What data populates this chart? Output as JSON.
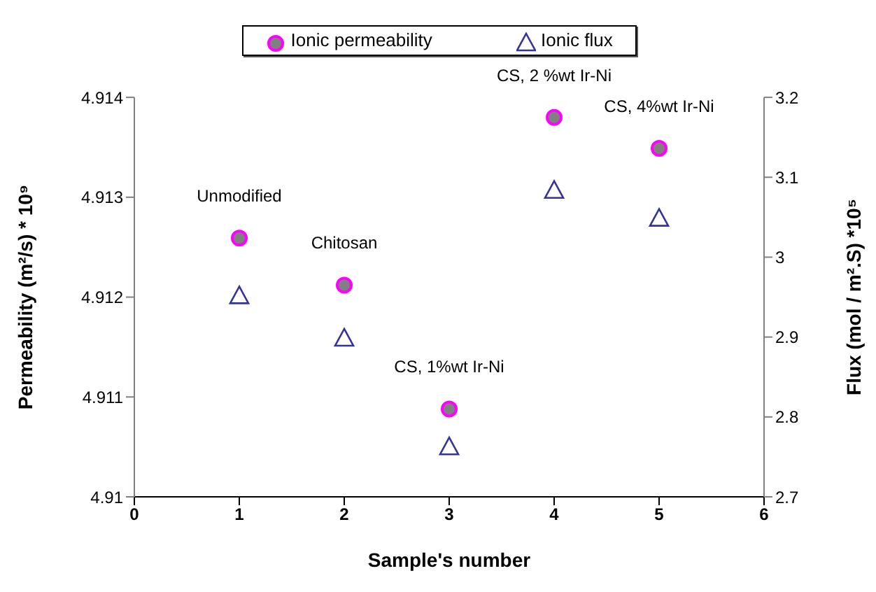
{
  "chart_data": {
    "type": "scatter",
    "xlabel": "Sample's number",
    "ylabel": "Permeability (m²/s) * 10⁹",
    "y2label": "Flux (mol / m².S) *10⁵",
    "x": [
      1,
      2,
      3,
      4,
      5
    ],
    "series": [
      {
        "name": "Ionic permeability",
        "color": "#ff00ff",
        "marker": "circle",
        "values": [
          4.91259,
          4.91212,
          4.91088,
          4.9138,
          4.91349
        ]
      },
      {
        "name": "Ionic flux",
        "color": "#333399",
        "marker": "triangle",
        "axis": "y2",
        "values": [
          2.951,
          2.898,
          2.762,
          3.083,
          3.048
        ]
      }
    ],
    "xlim": [
      0,
      6
    ],
    "xticks": [
      0,
      1,
      2,
      3,
      4,
      5,
      6
    ],
    "ylim": [
      4.91,
      4.914
    ],
    "yticks": [
      4.91,
      4.911,
      4.912,
      4.913,
      4.914
    ],
    "y2lim": [
      2.7,
      3.2
    ],
    "y2ticks": [
      2.7,
      2.8,
      2.9,
      3,
      3.1,
      3.2
    ],
    "annotations": [
      {
        "text": "Unmodified",
        "x": 1,
        "y": 4.91259
      },
      {
        "text": "Chitosan",
        "x": 2,
        "y": 4.91212
      },
      {
        "text": "CS, 1%wt Ir-Ni",
        "x": 3,
        "y": 4.91088
      },
      {
        "text": "CS, 2 %wt Ir-Ni",
        "x": 4,
        "y": 4.9138
      },
      {
        "text": "CS, 4%wt Ir-Ni",
        "x": 5,
        "y": 4.91349
      }
    ],
    "grid": false,
    "legend": "top"
  }
}
